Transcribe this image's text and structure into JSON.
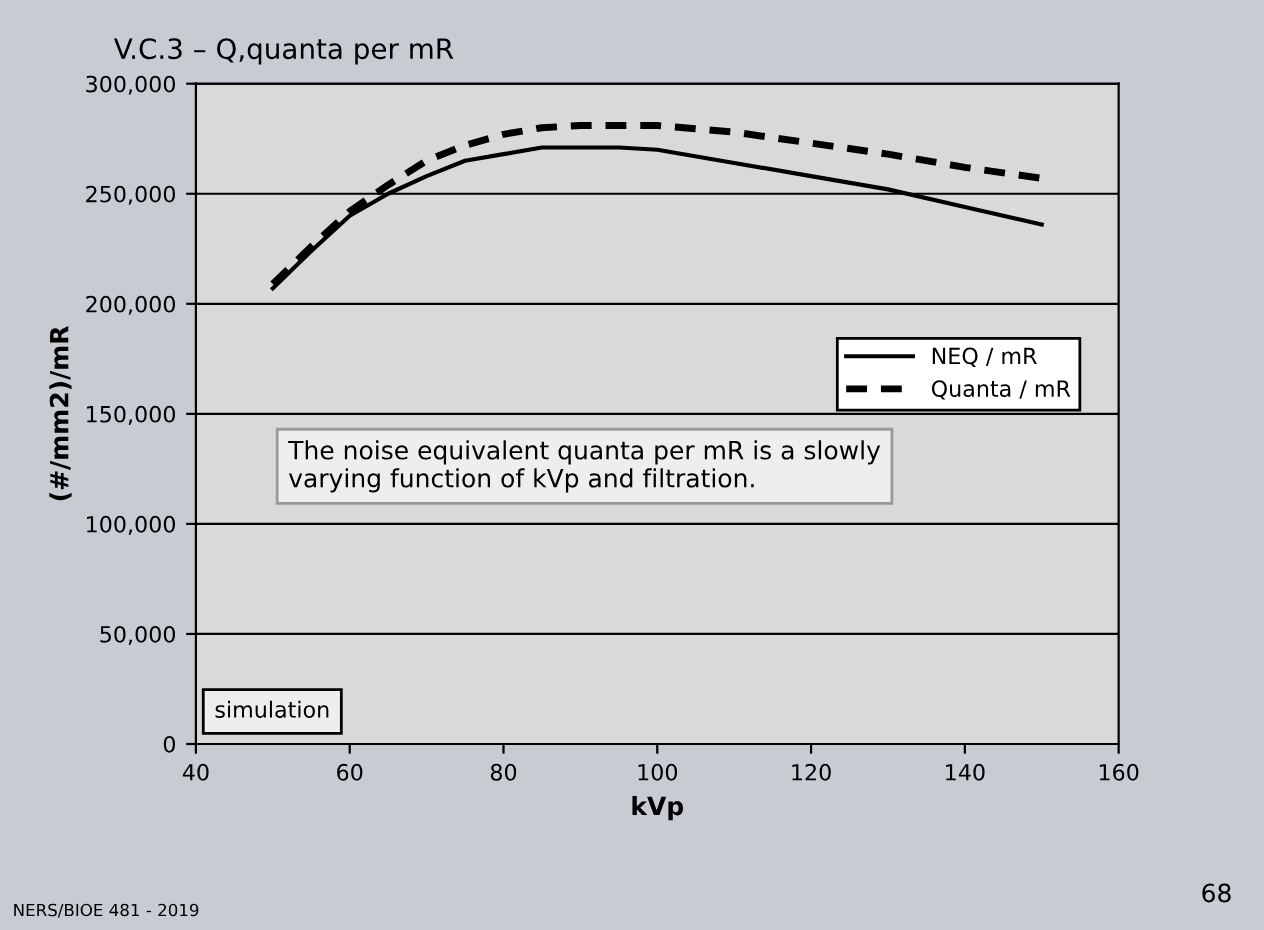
{
  "chart_data": {
    "type": "line",
    "title": "V.C.3 – Q,quanta per mR",
    "xlabel": "kVp",
    "ylabel": "(#/mm2)/mR",
    "x": [
      50,
      55,
      60,
      65,
      70,
      75,
      80,
      85,
      90,
      95,
      100,
      110,
      120,
      130,
      140,
      150
    ],
    "series": [
      {
        "name": "NEQ / mR",
        "color": "#000000",
        "line_style": "solid",
        "values": [
          207000,
          224000,
          240000,
          250000,
          258000,
          265000,
          268000,
          271000,
          271000,
          271000,
          270000,
          264000,
          258000,
          252000,
          244000,
          236000
        ]
      },
      {
        "name": "Quanta / mR",
        "color": "#000000",
        "line_style": "dashed",
        "values": [
          209000,
          226000,
          242000,
          254000,
          265000,
          272000,
          277000,
          280000,
          281000,
          281000,
          281000,
          278000,
          273000,
          268000,
          262000,
          257000
        ]
      }
    ],
    "xlim": [
      40,
      160
    ],
    "xticks": [
      40,
      60,
      80,
      100,
      120,
      140,
      160
    ],
    "ylim": [
      0,
      300000
    ],
    "yticks": [
      {
        "value": 0,
        "label": "0"
      },
      {
        "value": 50000,
        "label": "50,000"
      },
      {
        "value": 100000,
        "label": "100,000"
      },
      {
        "value": 150000,
        "label": "150,000"
      },
      {
        "value": 200000,
        "label": "200,000"
      },
      {
        "value": 250000,
        "label": "250,000"
      },
      {
        "value": 300000,
        "label": "300,000"
      }
    ],
    "grid": "y",
    "legend": "center right",
    "marker": "none",
    "annotations": [
      "The noise equivalent quanta per mR is a slowly varying function of kVp and filtration.",
      "simulation",
      "NERS/BIOE 481 - 2019",
      "68"
    ]
  }
}
